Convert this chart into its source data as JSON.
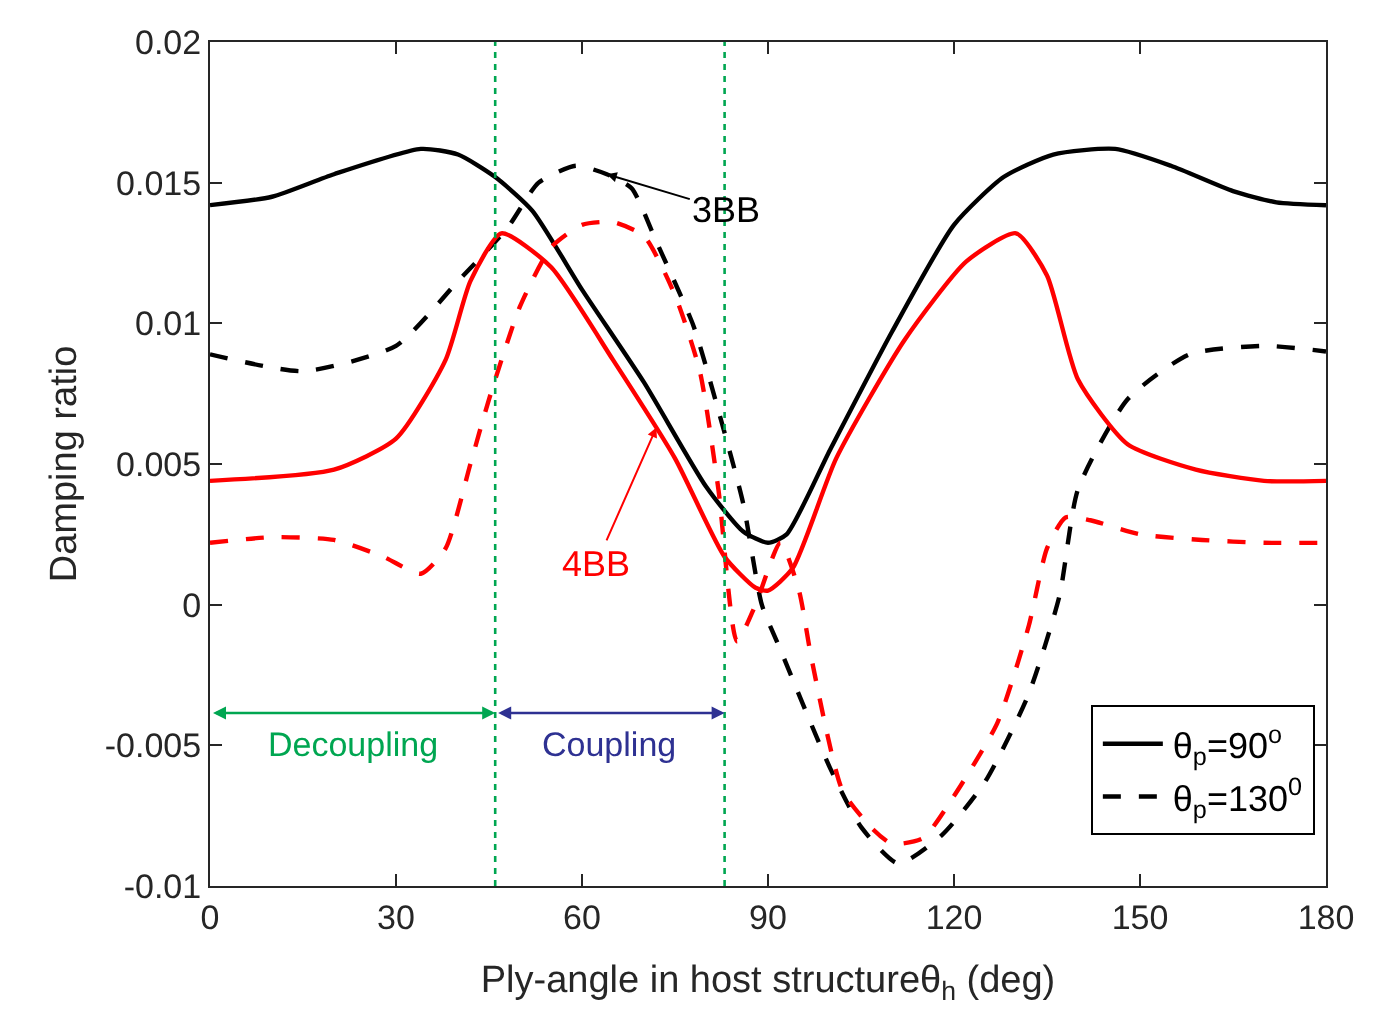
{
  "chart_data": {
    "type": "line",
    "xlabel": "Ply-angle in host structureθ$_{h}$ (deg)",
    "ylabel": "Damping ratio",
    "xlim": [
      0,
      180
    ],
    "xticks": [
      0,
      30,
      60,
      90,
      120,
      150,
      180
    ],
    "ylim": [
      -0.01,
      0.02
    ],
    "yticks": [
      -0.01,
      -0.005,
      0,
      0.005,
      0.01,
      0.015,
      0.02
    ],
    "grid": false,
    "legend": "bottom right",
    "marker": "none",
    "series": [
      {
        "name": "θ$_{p}$=90$^{o}$",
        "color": "#000000",
        "line_style": "solid",
        "x": [
          0,
          10,
          20,
          34,
          40,
          46,
          52,
          60,
          70,
          80,
          86,
          90,
          93,
          100,
          110,
          120,
          128,
          136,
          146,
          155,
          165,
          172,
          180
        ],
        "values": [
          0.0142,
          0.0145,
          0.0153,
          0.0162,
          0.016,
          0.0152,
          0.014,
          0.0112,
          0.0079,
          0.0042,
          0.0026,
          0.0022,
          0.0025,
          0.0055,
          0.0097,
          0.0135,
          0.0152,
          0.016,
          0.0162,
          0.0156,
          0.0147,
          0.0143,
          0.0142
        ]
      },
      {
        "name": "θ$_{p}$=130$^{0}$",
        "color": "#000000",
        "line_style": "dashed",
        "x": [
          0,
          15,
          30,
          40,
          48,
          53,
          59,
          64,
          68,
          72,
          78,
          82,
          86,
          89,
          92,
          100,
          105,
          111,
          118,
          125,
          132,
          137,
          140,
          148,
          158,
          170,
          180
        ],
        "values": [
          0.0089,
          0.0083,
          0.0092,
          0.0115,
          0.0134,
          0.015,
          0.0156,
          0.0153,
          0.0148,
          0.0129,
          0.0099,
          0.0069,
          0.0036,
          0.0,
          -0.0016,
          -0.0058,
          -0.0079,
          -0.0092,
          -0.0082,
          -0.0063,
          -0.0032,
          0.0003,
          0.0041,
          0.0073,
          0.0089,
          0.0092,
          0.009
        ]
      },
      {
        "color": "#ff0000",
        "line_style": "solid",
        "x": [
          0,
          20,
          30,
          38,
          42,
          47,
          55,
          65,
          75,
          83,
          88,
          90,
          94,
          101,
          112,
          122,
          130,
          135,
          140,
          148,
          159,
          170,
          180
        ],
        "values": [
          0.0044,
          0.0048,
          0.0059,
          0.0087,
          0.0115,
          0.0132,
          0.012,
          0.0087,
          0.0052,
          0.0017,
          0.0006,
          0.0005,
          0.0013,
          0.0052,
          0.0094,
          0.0122,
          0.0132,
          0.0117,
          0.008,
          0.0057,
          0.0048,
          0.0044,
          0.0044
        ]
      },
      {
        "color": "#ff0000",
        "line_style": "dashed",
        "x": [
          0,
          10,
          20,
          28,
          34,
          38,
          42,
          45,
          50,
          55,
          60,
          65,
          70,
          75,
          79,
          82,
          85,
          88,
          92,
          95,
          97,
          102,
          107,
          110,
          115,
          120,
          127,
          132,
          135,
          138,
          142,
          150,
          160,
          170,
          180
        ],
        "values": [
          0.0022,
          0.0024,
          0.0023,
          0.0017,
          0.0011,
          0.002,
          0.005,
          0.0073,
          0.0106,
          0.0127,
          0.0135,
          0.0136,
          0.0131,
          0.011,
          0.0083,
          0.0041,
          -0.0013,
          0.0,
          0.0022,
          0.0005,
          -0.0019,
          -0.0066,
          -0.008,
          -0.0085,
          -0.0083,
          -0.0068,
          -0.0042,
          -0.0008,
          0.002,
          0.0031,
          0.003,
          0.0025,
          0.0023,
          0.0022,
          0.0022
        ]
      }
    ],
    "ref_lines": [
      {
        "axis": "x",
        "value": 46,
        "color": "#00a651",
        "line_style": "dotted"
      },
      {
        "axis": "x",
        "value": 83,
        "color": "#00a651",
        "line_style": "dotted"
      }
    ],
    "annotations": [
      {
        "text": "3BB",
        "x": 64,
        "y": 0.0153
      },
      {
        "text": "4BB",
        "x": 72,
        "y": 0.0063
      },
      "Decoupling",
      "Coupling"
    ]
  }
}
